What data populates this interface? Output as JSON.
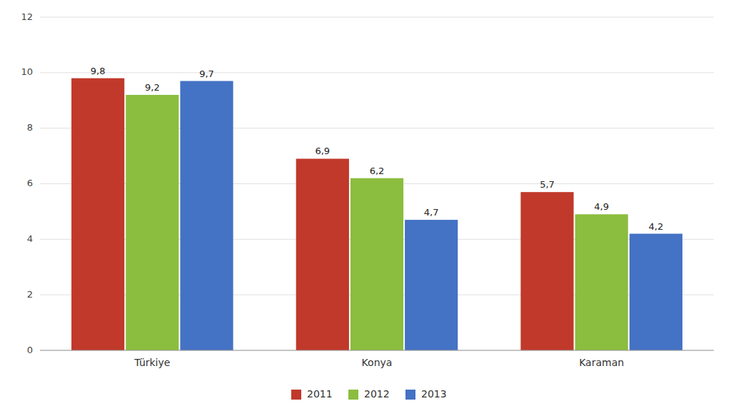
{
  "chart_data": {
    "type": "bar",
    "categories": [
      "Türkiye",
      "Konya",
      "Karaman"
    ],
    "series": [
      {
        "name": "2011",
        "color": "#C0392B",
        "values": [
          9.8,
          6.9,
          5.7
        ],
        "value_labels": [
          "9,8",
          "6,9",
          "5,7"
        ]
      },
      {
        "name": "2012",
        "color": "#8BBD3F",
        "values": [
          9.2,
          6.2,
          4.9
        ],
        "value_labels": [
          "9,2",
          "6,2",
          "4,9"
        ]
      },
      {
        "name": "2013",
        "color": "#4472C4",
        "values": [
          9.7,
          4.7,
          4.2
        ],
        "value_labels": [
          "9,7",
          "4,7",
          "4,2"
        ]
      }
    ],
    "ylim": [
      0,
      12
    ],
    "yticks": [
      0,
      2,
      4,
      6,
      8,
      10,
      12
    ],
    "grid": true,
    "data_labels": true,
    "legend": "bottom"
  }
}
